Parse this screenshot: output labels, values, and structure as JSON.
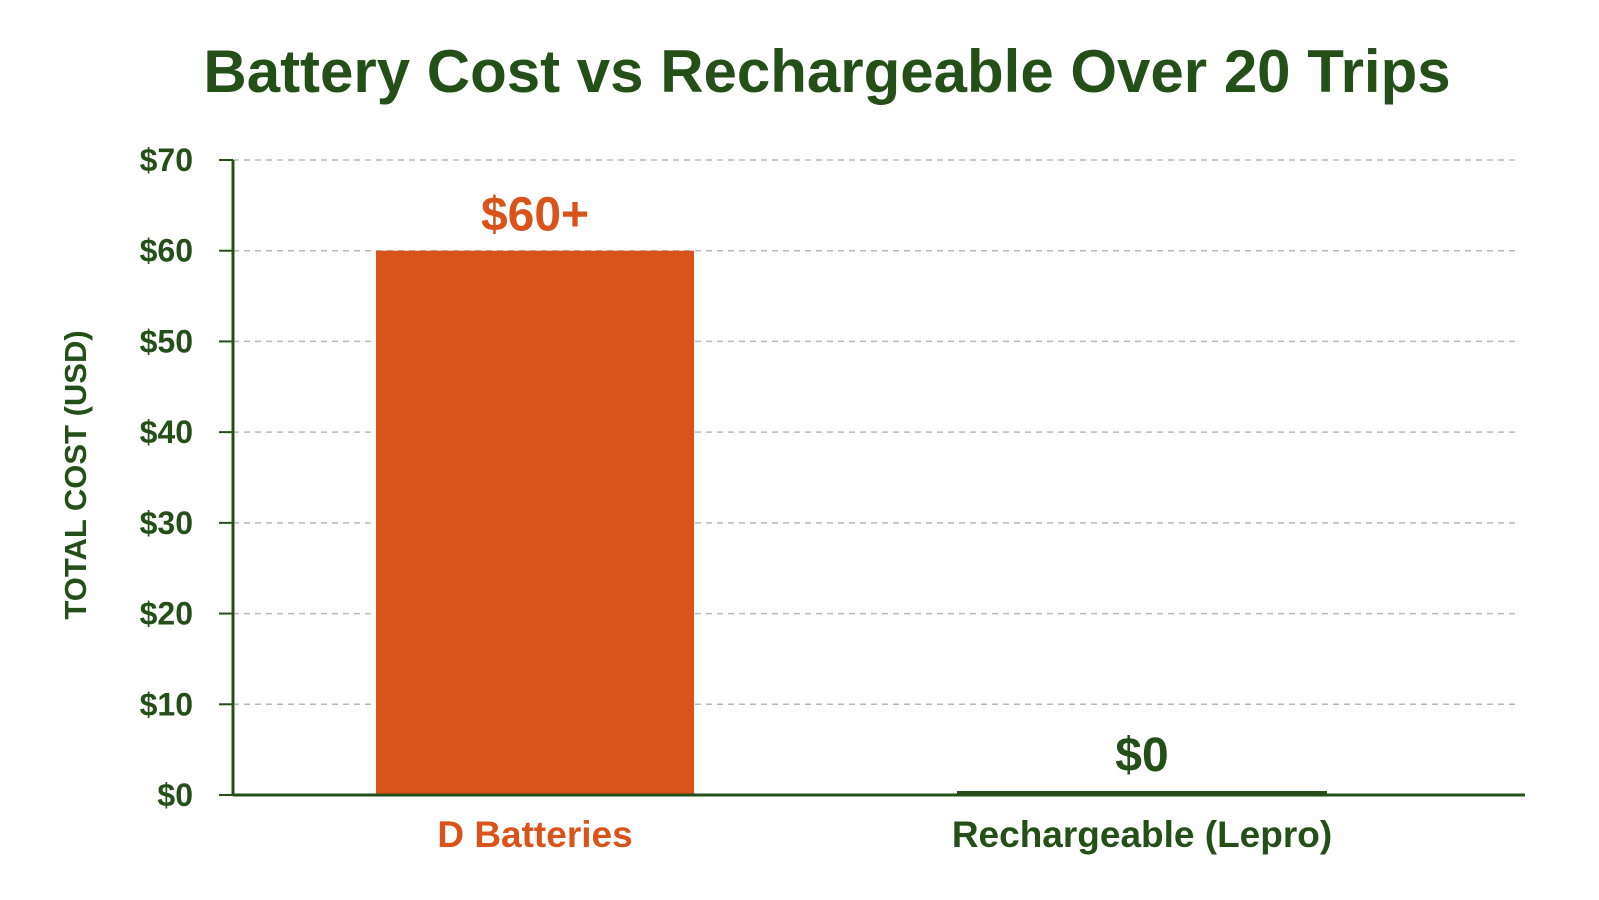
{
  "chart_data": {
    "type": "bar",
    "title": "Battery Cost vs Rechargeable Over 20 Trips",
    "xlabel": "",
    "ylabel": "TOTAL COST (USD)",
    "ylim": [
      0,
      70
    ],
    "yticks": [
      0,
      10,
      20,
      30,
      40,
      50,
      60,
      70
    ],
    "ytick_labels": [
      "$0",
      "$10",
      "$20",
      "$30",
      "$40",
      "$50",
      "$60",
      "$70"
    ],
    "grid": true,
    "categories": [
      "D Batteries",
      "Rechargeable (Lepro)"
    ],
    "values": [
      60,
      0
    ],
    "value_labels": [
      "$60+",
      "$0"
    ],
    "colors": {
      "bars": [
        "#d9531a",
        "#244f18"
      ],
      "category_labels": [
        "#d9531a",
        "#244f18"
      ],
      "value_labels": [
        "#d9531a",
        "#244f18"
      ],
      "title": "#244f18",
      "axis": "#244f18"
    }
  }
}
